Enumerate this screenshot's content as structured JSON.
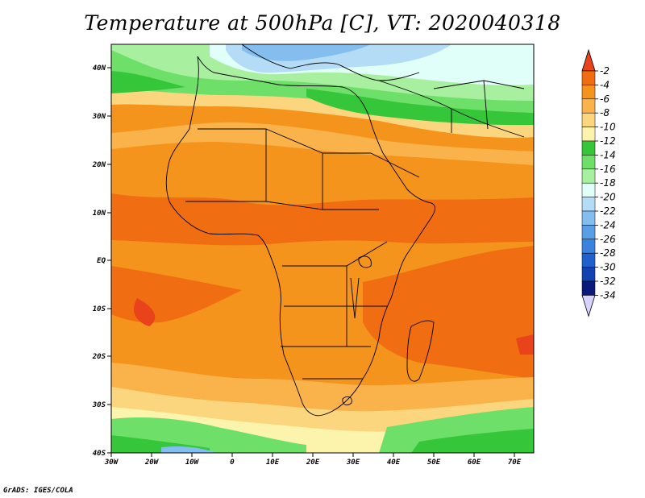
{
  "title": "Temperature at 500hPa [C], VT: 2020040318",
  "footer": "GrADS: IGES/COLA",
  "map": {
    "lon_ticks": [
      "30W",
      "20W",
      "10W",
      "0",
      "10E",
      "20E",
      "30E",
      "40E",
      "50E",
      "60E",
      "70E"
    ],
    "lat_ticks": [
      "40N",
      "30N",
      "20N",
      "10N",
      "EQ",
      "10S",
      "20S",
      "30S",
      "40S"
    ]
  },
  "colorbar": {
    "levels": [
      "-2",
      "-4",
      "-6",
      "-8",
      "-10",
      "-12",
      "-14",
      "-16",
      "-18",
      "-20",
      "-22",
      "-24",
      "-26",
      "-28",
      "-30",
      "-32",
      "-34"
    ],
    "colors": [
      "#e8431a",
      "#f06d12",
      "#f5941c",
      "#fab34a",
      "#fcd67e",
      "#fcf3ad",
      "#36c63a",
      "#6ee06a",
      "#a8f0a0",
      "#e0fff8",
      "#b4dcf7",
      "#84beef",
      "#5a9ee6",
      "#3a82de",
      "#2060cc",
      "#1242b0",
      "#0a1a7a",
      "#d7d2ff"
    ]
  }
}
